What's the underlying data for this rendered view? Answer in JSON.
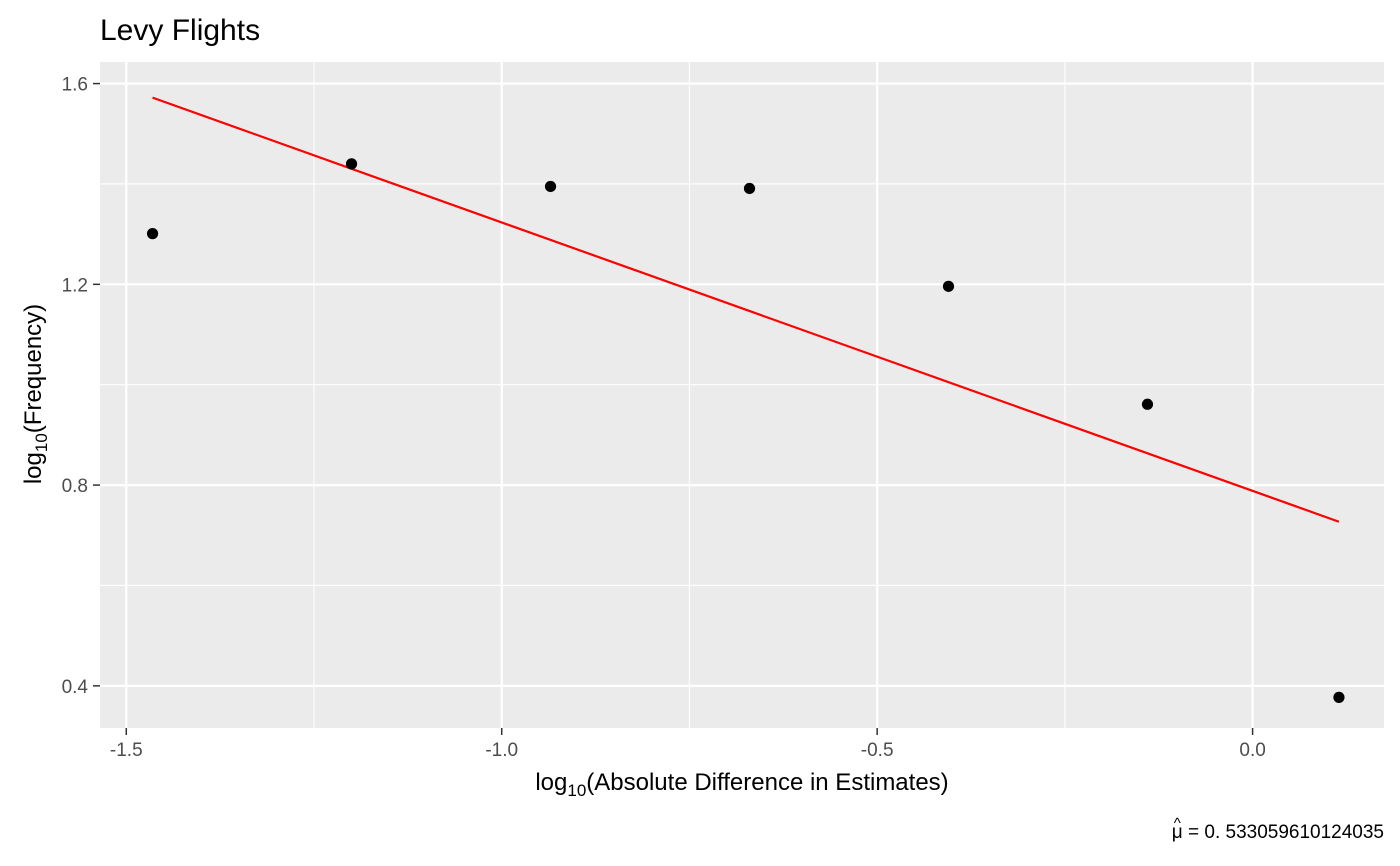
{
  "chart_data": {
    "type": "scatter",
    "title": "Levy Flights",
    "xlabel": {
      "prefix": "log",
      "subscript": "10",
      "rest": "(Absolute Difference in Estimates)"
    },
    "ylabel": {
      "prefix": "log",
      "subscript": "10",
      "rest": "(Frequency)"
    },
    "caption": {
      "symbol": "μ",
      "accent": "^",
      "text": " = 0. 533059610124035"
    },
    "xlim": [
      -1.535,
      0.175
    ],
    "ylim": [
      0.316,
      1.643
    ],
    "x_ticks": [
      -1.5,
      -1.0,
      -0.5,
      0.0
    ],
    "x_tick_labels": [
      "-1.5",
      "-1.0",
      "-0.5",
      "0.0"
    ],
    "y_ticks": [
      0.4,
      0.8,
      1.2,
      1.6
    ],
    "y_tick_labels": [
      "0.4",
      "0.8",
      "1.2",
      "1.6"
    ],
    "grid": true,
    "panel_background": "#ebebeb",
    "grid_color": "#ffffff",
    "series": [
      {
        "type": "points",
        "color": "#000000",
        "x": [
          -1.465,
          -1.2,
          -0.935,
          -0.67,
          -0.405,
          -0.14,
          0.115
        ],
        "y": [
          1.301,
          1.44,
          1.395,
          1.391,
          1.196,
          0.961,
          0.377
        ]
      },
      {
        "type": "line",
        "color": "#ff0000",
        "x": [
          -1.465,
          0.115
        ],
        "y": [
          1.572,
          0.727
        ]
      }
    ]
  }
}
